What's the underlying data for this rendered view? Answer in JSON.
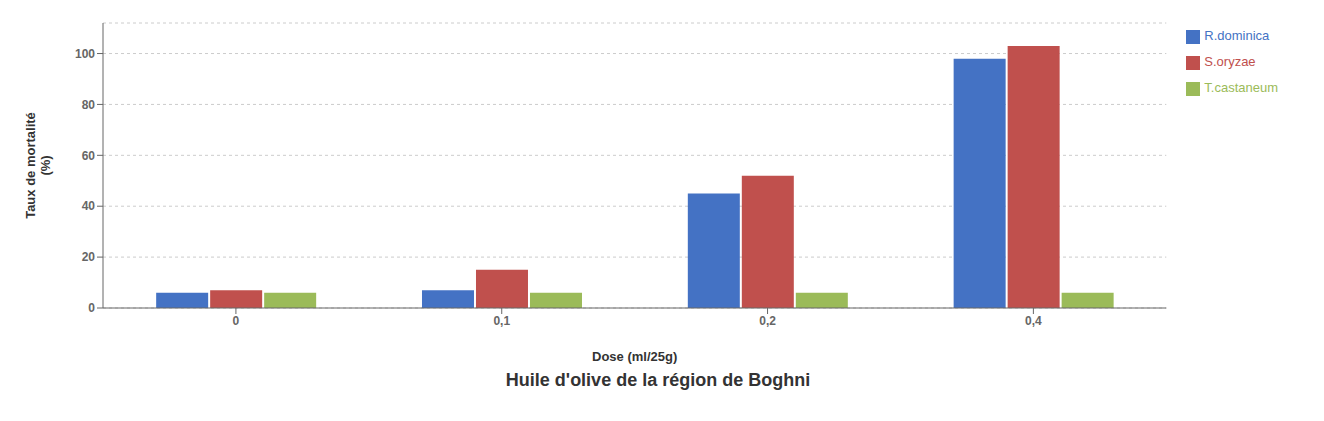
{
  "chart_data": {
    "type": "bar",
    "title": "Huile d'olive de la région de Boghni",
    "xlabel": "Dose (ml/25g)",
    "ylabel": "Taux de mortalité\n(%)",
    "categories": [
      "0",
      "0,1",
      "0,2",
      "0,4"
    ],
    "series": [
      {
        "name": "R.dominica",
        "color": "#4472C4",
        "values": [
          6,
          7,
          45,
          98
        ]
      },
      {
        "name": "S.oryzae",
        "color": "#C0504D",
        "values": [
          7,
          15,
          52,
          103
        ]
      },
      {
        "name": "T.castaneum",
        "color": "#9BBB59",
        "values": [
          6,
          6,
          6,
          6
        ]
      }
    ],
    "ylim": [
      0,
      112
    ],
    "yticks": [
      0,
      20,
      40,
      60,
      80,
      100
    ],
    "grid": true,
    "legend": "right"
  }
}
